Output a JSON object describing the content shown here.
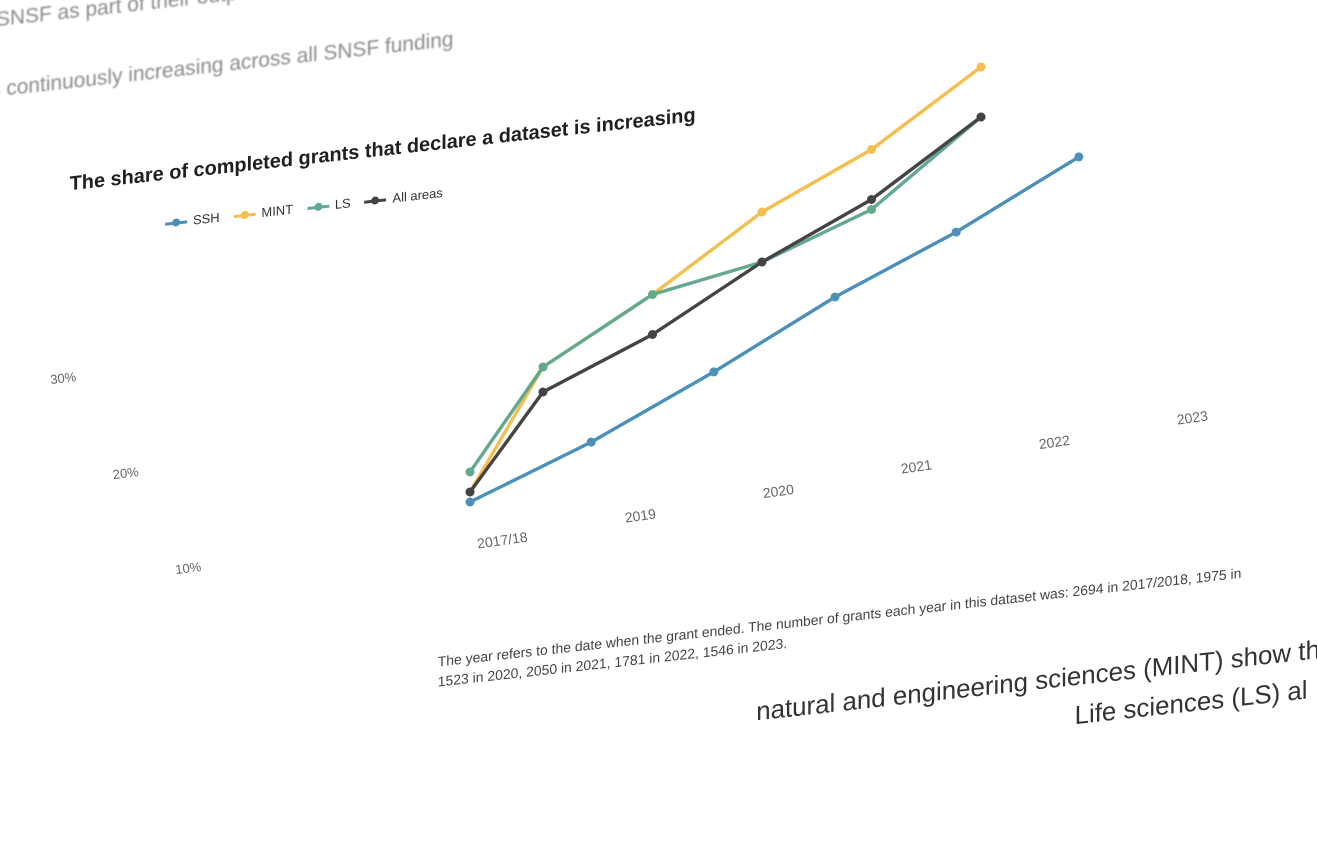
{
  "intro": {
    "line1": "SNSF as part of their output",
    "line2": "s continuously increasing across all SNSF funding"
  },
  "title": "The share of completed grants that declare a dataset is increasing",
  "colors": {
    "SSH": "#4a90b8",
    "MINT": "#f6bd4f",
    "LS": "#63a98b",
    "All areas": "#444444"
  },
  "note_line1": "The year refers to the date when the grant ended. The number of grants each year in this dataset was: 2694 in 2017/2018, 1975 in",
  "note_line2": "1523 in 2020, 2050 in 2021, 1781 in 2022, 1546 in 2023.",
  "body_line1": "natural and engineering sciences (MINT) show the",
  "body_line2": "Life sciences (LS) al",
  "chart_data": {
    "type": "line",
    "title": "The share of completed grants that declare a dataset is increasing",
    "categories": [
      "2017/18",
      "2019",
      "2020",
      "2021",
      "2022",
      "2023"
    ],
    "y_ticks": [
      "10%",
      "20%",
      "30%"
    ],
    "ylim": [
      5,
      40
    ],
    "legend_position": "top-left",
    "series": [
      {
        "name": "SSH",
        "x": [
          0,
          0.83,
          1.67,
          2.5,
          3.33,
          4.17
        ],
        "values": [
          8,
          11.5,
          16,
          21,
          25,
          30
        ]
      },
      {
        "name": "MINT",
        "x": [
          0,
          0.5,
          1.25,
          2.0,
          2.75,
          3.5
        ],
        "values": [
          9,
          20,
          25,
          31,
          35,
          41
        ]
      },
      {
        "name": "LS",
        "x": [
          0,
          0.5,
          1.25,
          2.0,
          2.75,
          3.5
        ],
        "values": [
          11,
          20,
          25,
          26,
          29,
          36
        ]
      },
      {
        "name": "All areas",
        "x": [
          0,
          0.5,
          1.25,
          2.0,
          2.75,
          3.5
        ],
        "values": [
          9,
          17.5,
          21,
          26,
          30,
          36
        ]
      }
    ]
  }
}
